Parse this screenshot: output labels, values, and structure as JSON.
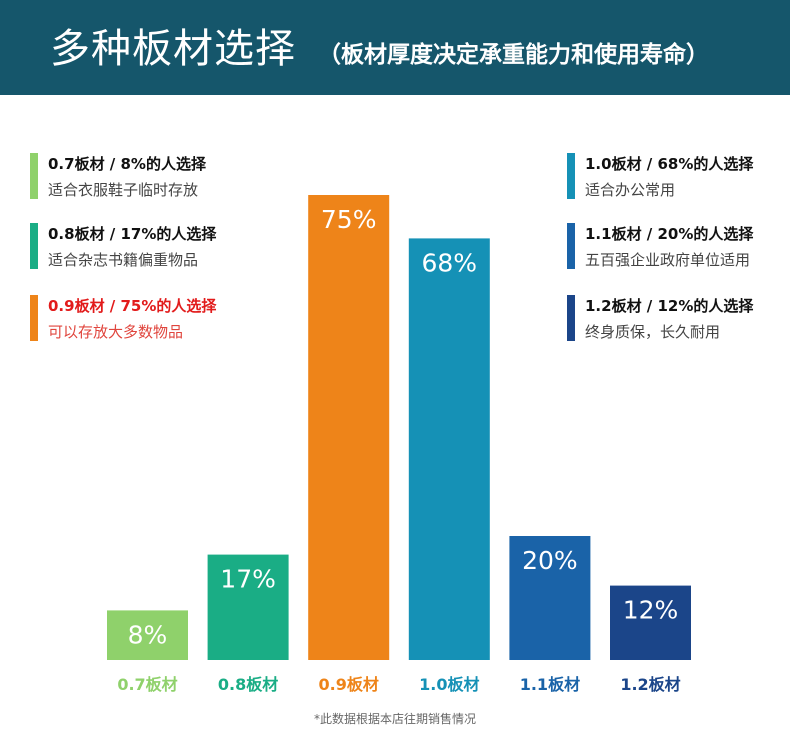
{
  "header": {
    "title": "多种板材选择",
    "subtitle": "（板材厚度决定承重能力和使用寿命）",
    "background": "#15566b"
  },
  "legend": [
    {
      "title": "0.7板材 / 8%的人选择",
      "desc": "适合衣服鞋子临时存放",
      "color": "#8fd16b",
      "highlight": false
    },
    {
      "title": "0.8板材 / 17%的人选择",
      "desc": "适合杂志书籍偏重物品",
      "color": "#1aad85",
      "highlight": false
    },
    {
      "title": "0.9板材 / 75%的人选择",
      "desc": "可以存放大多数物品",
      "color": "#ee8419",
      "highlight": true,
      "title_color": "#e21b1b",
      "desc_color": "#e0453d"
    },
    {
      "title": "1.0板材 / 68%的人选择",
      "desc": "适合办公常用",
      "color": "#1591b6",
      "highlight": false
    },
    {
      "title": "1.1板材 / 20%的人选择",
      "desc": "五百强企业政府单位适用",
      "color": "#1a63a8",
      "highlight": false
    },
    {
      "title": "1.2板材 / 12%的人选择",
      "desc": "终身质保，长久耐用",
      "color": "#1b4589",
      "highlight": false
    }
  ],
  "chart_data": {
    "type": "bar",
    "categories": [
      "0.7板材",
      "0.8板材",
      "0.9板材",
      "1.0板材",
      "1.1板材",
      "1.2板材"
    ],
    "values": [
      8,
      17,
      75,
      68,
      20,
      12
    ],
    "value_labels": [
      "8%",
      "17%",
      "75%",
      "68%",
      "20%",
      "12%"
    ],
    "colors": [
      "#8fd16b",
      "#1aad85",
      "#ee8419",
      "#1591b6",
      "#1a63a8",
      "#1b4589"
    ],
    "ylim": [
      0,
      80
    ],
    "grid": false,
    "title": "",
    "xlabel": "",
    "ylabel": ""
  },
  "note": "*此数据根据本店往期销售情况"
}
